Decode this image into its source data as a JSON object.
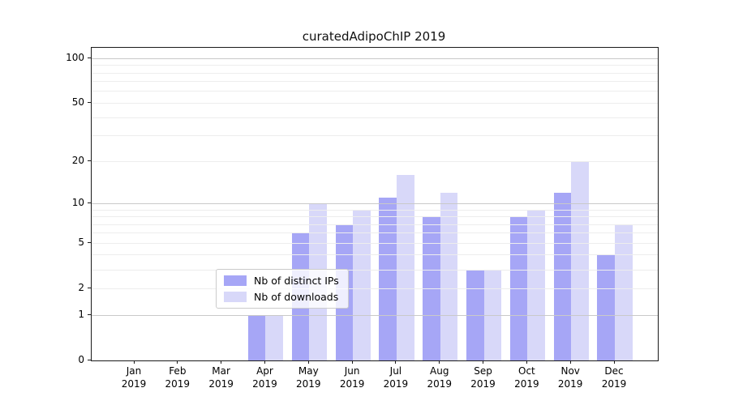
{
  "title": "curatedAdipoChIP 2019",
  "chart_data": {
    "type": "bar",
    "title": "curatedAdipoChIP 2019",
    "categories": [
      "Jan",
      "Feb",
      "Mar",
      "Apr",
      "May",
      "Jun",
      "Jul",
      "Aug",
      "Sep",
      "Oct",
      "Nov",
      "Dec"
    ],
    "year": "2019",
    "series": [
      {
        "name": "Nb of distinct IPs",
        "color": "#a6a6f6",
        "values": [
          0,
          0,
          0,
          1,
          6,
          7,
          11,
          8,
          3,
          8,
          12,
          4
        ]
      },
      {
        "name": "Nb of downloads",
        "color": "#d8d8f9",
        "values": [
          0,
          0,
          0,
          1,
          10,
          9,
          16,
          12,
          3,
          9,
          20,
          7
        ]
      }
    ],
    "y_scale": "log1p",
    "y_ticks": [
      0,
      1,
      2,
      5,
      10,
      20,
      50,
      100
    ],
    "y_minor_gridlines": [
      2,
      3,
      4,
      5,
      6,
      7,
      8,
      9,
      20,
      30,
      40,
      50,
      60,
      70,
      80,
      90
    ],
    "y_major_gridlines": [
      1,
      10,
      100
    ],
    "ylim": [
      0,
      118
    ],
    "xlabel": "",
    "ylabel": "",
    "grid": true,
    "legend_position": "lower center",
    "colors": {
      "axis": "#1a1a1a",
      "major_grid": "#c9c9c9",
      "minor_grid": "#ededed",
      "background": "#ffffff"
    }
  }
}
